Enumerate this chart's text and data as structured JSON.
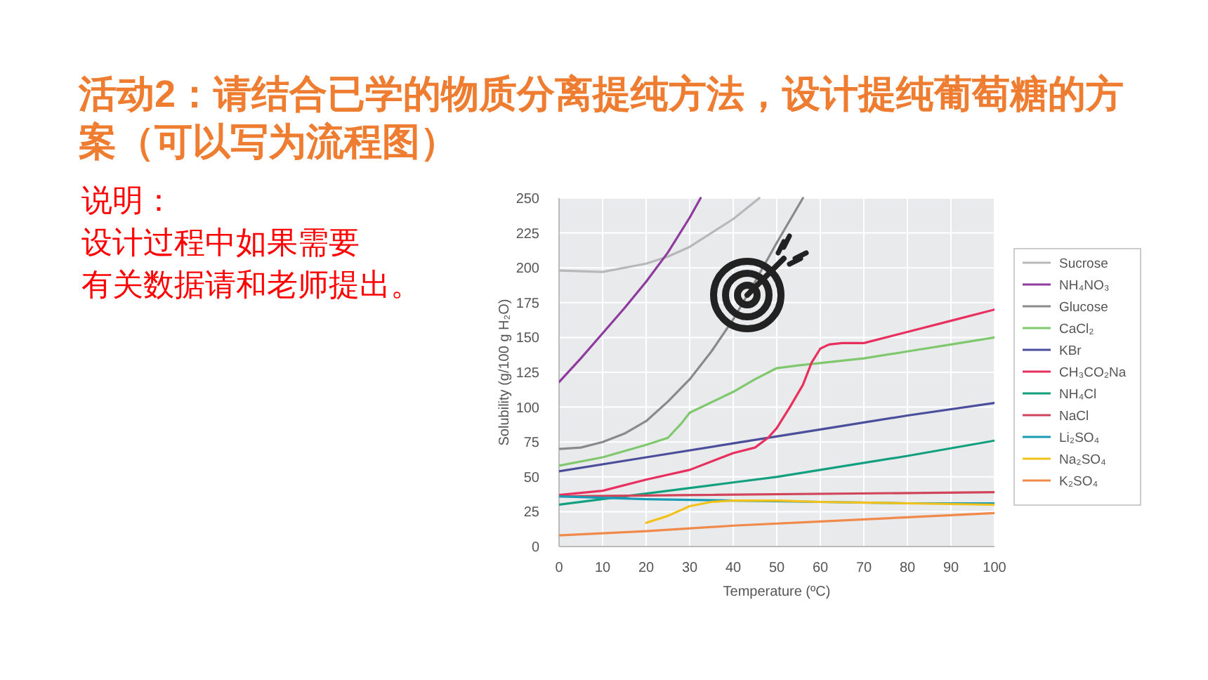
{
  "chart_data": {
    "type": "line",
    "title": "活动2：请结合已学的物质分离提纯方法，设计提纯葡萄糖的方案（可以写为流程图）",
    "annotations": [
      "说明：",
      "设计过程中如果需要",
      "有关数据请和老师提出。"
    ],
    "xlabel": "Temperature (ºC)",
    "ylabel": "Solubility (g/100 g H₂O)",
    "xlim": [
      0,
      100
    ],
    "ylim": [
      0,
      250
    ],
    "xticks": [
      0,
      10,
      20,
      30,
      40,
      50,
      60,
      70,
      80,
      90,
      100
    ],
    "yticks": [
      0,
      25,
      50,
      75,
      100,
      125,
      150,
      175,
      200,
      225,
      250
    ],
    "grid": true,
    "legend": "right",
    "marker": "none",
    "line_style": "solid",
    "series": [
      {
        "name": "Sucrose",
        "color": "#b8b8b8",
        "x": [
          0,
          10,
          20,
          25,
          30,
          40,
          46
        ],
        "values": [
          198,
          197,
          203,
          208,
          215,
          235,
          250
        ]
      },
      {
        "name": "NH₄NO₃",
        "color": "#8e3a9e",
        "x": [
          0,
          5,
          10,
          15,
          20,
          25,
          30,
          32.5
        ],
        "values": [
          118,
          135,
          153,
          171,
          190,
          211,
          236,
          250
        ]
      },
      {
        "name": "Glucose",
        "color": "#8a8a8a",
        "x": [
          0,
          5,
          10,
          15,
          20,
          25,
          30,
          35,
          40,
          45,
          50,
          56
        ],
        "values": [
          70,
          71,
          75,
          81,
          90,
          104,
          120,
          140,
          163,
          190,
          218,
          250
        ]
      },
      {
        "name": "CaCl₂",
        "color": "#7fc86e",
        "x": [
          0,
          10,
          20,
          25,
          28,
          30,
          40,
          45,
          50,
          55,
          70,
          80,
          90,
          100
        ],
        "values": [
          58,
          64,
          73,
          78,
          88,
          96,
          111,
          120,
          128,
          130,
          135,
          140,
          145,
          150
        ]
      },
      {
        "name": "KBr",
        "color": "#4b4f9b",
        "x": [
          0,
          20,
          40,
          60,
          80,
          100
        ],
        "values": [
          54,
          64,
          74,
          84,
          94,
          103
        ]
      },
      {
        "name": "CH₃CO₂Na",
        "color": "#e8305f",
        "x": [
          0,
          10,
          20,
          30,
          40,
          45,
          48,
          50,
          53,
          56,
          58,
          60,
          62,
          65,
          70,
          80,
          90,
          100
        ],
        "values": [
          37,
          40,
          48,
          55,
          67,
          71,
          78,
          85,
          100,
          116,
          132,
          142,
          145,
          146,
          146,
          154,
          162,
          170
        ]
      },
      {
        "name": "NH₄Cl",
        "color": "#13a07f",
        "x": [
          0,
          20,
          40,
          50,
          60,
          80,
          100
        ],
        "values": [
          30,
          38,
          46,
          50,
          55,
          65,
          76
        ]
      },
      {
        "name": "NaCl",
        "color": "#d0455a",
        "x": [
          0,
          100
        ],
        "values": [
          36,
          39
        ]
      },
      {
        "name": "Li₂SO₄",
        "color": "#1a9bb5",
        "x": [
          0,
          20,
          40,
          60,
          80,
          100
        ],
        "values": [
          36,
          34,
          33,
          32,
          31,
          31
        ]
      },
      {
        "name": "Na₂SO₄",
        "color": "#f2c21b",
        "x": [
          20,
          25,
          30,
          35,
          40,
          50,
          60,
          80,
          100
        ],
        "values": [
          17,
          22,
          29,
          32,
          33,
          33,
          32,
          31,
          30
        ]
      },
      {
        "name": "K₂SO₄",
        "color": "#f08a4a",
        "x": [
          0,
          20,
          40,
          60,
          80,
          100
        ],
        "values": [
          8,
          11,
          15,
          18,
          21,
          24
        ]
      }
    ]
  }
}
